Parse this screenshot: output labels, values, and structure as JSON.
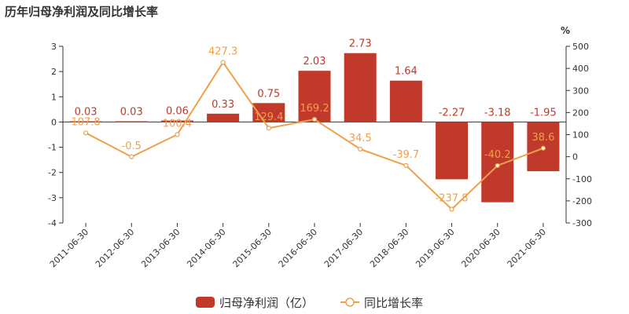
{
  "chart_data": {
    "type": "bar+line",
    "title": "历年归母净利润及同比增长率",
    "categories": [
      "2011-06-30",
      "2012-06-30",
      "2013-06-30",
      "2014-06-30",
      "2015-06-30",
      "2016-06-30",
      "2017-06-30",
      "2018-06-30",
      "2019-06-30",
      "2020-06-30",
      "2021-06-30"
    ],
    "series": [
      {
        "name": "归母净利润（亿）",
        "type": "bar",
        "axis": "left",
        "color": "#c0392b",
        "values": [
          0.03,
          0.03,
          0.06,
          0.33,
          0.75,
          2.03,
          2.73,
          1.64,
          -2.27,
          -3.18,
          -1.95
        ],
        "labels": [
          "0.03",
          "0.03",
          "0.06",
          "0.33",
          "0.75",
          "2.03",
          "2.73",
          "1.64",
          "-2.27",
          "-3.18",
          "-1.95"
        ]
      },
      {
        "name": "同比增长率",
        "type": "line",
        "axis": "right",
        "color": "#f0a04b",
        "values": [
          107.8,
          -0.5,
          100.4,
          427.3,
          129.4,
          169.2,
          34.5,
          -39.7,
          -237.8,
          -40.2,
          38.6
        ],
        "labels": [
          "107.8",
          "-0.5",
          "100.4",
          "427.3",
          "129.4",
          "169.2",
          "34.5",
          "-39.7",
          "-237.8",
          "-40.2",
          "38.6"
        ]
      }
    ],
    "left_axis": {
      "min": -4,
      "max": 3,
      "ticks": [
        "-4",
        "-3",
        "-2",
        "-1",
        "0",
        "1",
        "2",
        "3"
      ]
    },
    "right_axis": {
      "min": -300,
      "max": 500,
      "unit": "%",
      "ticks": [
        "-300",
        "-200",
        "-100",
        "0",
        "100",
        "200",
        "300",
        "400",
        "500"
      ]
    },
    "grid": false,
    "legend_position": "bottom"
  }
}
